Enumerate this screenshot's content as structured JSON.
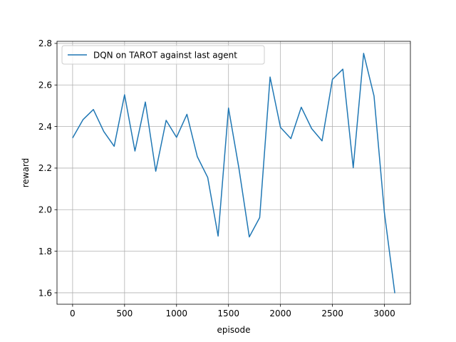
{
  "chart_data": {
    "type": "line",
    "xlabel": "episode",
    "ylabel": "reward",
    "xlim": [
      -150,
      3250
    ],
    "ylim": [
      1.545,
      2.81
    ],
    "xticks": [
      0,
      500,
      1000,
      1500,
      2000,
      2500,
      3000
    ],
    "xtick_labels": [
      "0",
      "500",
      "1000",
      "1500",
      "2000",
      "2500",
      "3000"
    ],
    "yticks": [
      1.6,
      1.8,
      2.0,
      2.2,
      2.4,
      2.6,
      2.8
    ],
    "ytick_labels": [
      "1.6",
      "1.8",
      "2.0",
      "2.2",
      "2.4",
      "2.6",
      "2.8"
    ],
    "grid": true,
    "legend_position": "top-left",
    "series": [
      {
        "name": "DQN on TAROT against last agent",
        "color": "#1f77b4",
        "x": [
          0,
          100,
          200,
          300,
          400,
          500,
          600,
          700,
          800,
          900,
          1000,
          1100,
          1200,
          1300,
          1400,
          1500,
          1600,
          1700,
          1800,
          1900,
          2000,
          2100,
          2200,
          2300,
          2400,
          2500,
          2600,
          2700,
          2800,
          2900,
          3000,
          3100
        ],
        "y": [
          2.345,
          2.433,
          2.482,
          2.376,
          2.305,
          2.553,
          2.282,
          2.518,
          2.185,
          2.43,
          2.348,
          2.459,
          2.255,
          2.155,
          1.873,
          2.489,
          2.2,
          1.869,
          1.962,
          2.638,
          2.396,
          2.342,
          2.493,
          2.39,
          2.331,
          2.627,
          2.676,
          2.202,
          2.752,
          2.547,
          1.985,
          1.598
        ]
      }
    ]
  }
}
